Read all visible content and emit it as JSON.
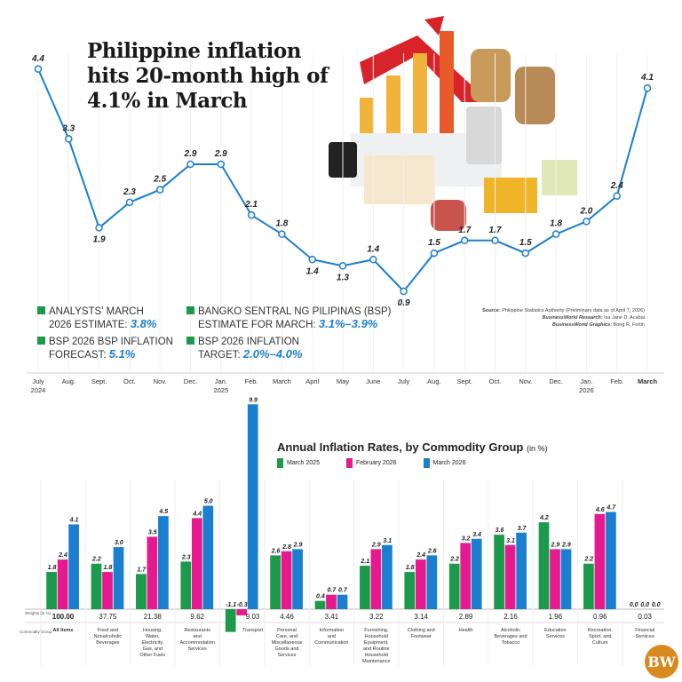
{
  "headline": "Philippine inflation hits 20-month high of 4.1% in March",
  "notes": [
    {
      "line1": "ANALYSTS' MARCH",
      "line2": "2026 ESTIMATE: ",
      "value": "3.8%"
    },
    {
      "line1": "BSP 2026 BSP INFLATION",
      "line2": "FORECAST: ",
      "value": "5.1%"
    },
    {
      "line1": "BANGKO SENTRAL NG PILIPINAS (BSP)",
      "line2": "ESTIMATE FOR MARCH: ",
      "value": "3.1%–3.9%"
    },
    {
      "line1": "BSP 2026 INFLATION",
      "line2": "TARGET: ",
      "value": "2.0%–4.0%"
    }
  ],
  "source": {
    "source_label": "Source:",
    "source_text": "Philippine Statistics Authority (Preliminary data as of April 7, 2026)",
    "research_label": "BusinessWorld Research:",
    "research_text": "Isa Jane D. Acabal",
    "graphics_label": "BusinessWorld Graphics:",
    "graphics_text": "Bong R. Fortin"
  },
  "logo": "BW",
  "colors": {
    "line": "#1a7fcf",
    "march2025": "#1a9a4a",
    "feb2026": "#e6198f",
    "march2026": "#1a7fcf",
    "note_square": "#1a9a4a",
    "logo": "#d88a1e"
  },
  "chart_data": [
    {
      "type": "line",
      "title": "",
      "x": [
        "July 2024",
        "Aug.",
        "Sept.",
        "Oct.",
        "Nov.",
        "Dec.",
        "Jan. 2025",
        "Feb.",
        "March",
        "April",
        "May",
        "June",
        "July",
        "Aug.",
        "Sept.",
        "Oct.",
        "Nov.",
        "Dec.",
        "Jan. 2026",
        "Feb.",
        "March"
      ],
      "x_tick_lines": [
        [
          "July",
          "2024"
        ],
        [
          "Aug."
        ],
        [
          "Sept."
        ],
        [
          "Oct."
        ],
        [
          "Nov."
        ],
        [
          "Dec."
        ],
        [
          "Jan.",
          "2025"
        ],
        [
          "Feb."
        ],
        [
          "March"
        ],
        [
          "April"
        ],
        [
          "May"
        ],
        [
          "June"
        ],
        [
          "July"
        ],
        [
          "Aug."
        ],
        [
          "Sept."
        ],
        [
          "Oct."
        ],
        [
          "Nov."
        ],
        [
          "Dec."
        ],
        [
          "Jan.",
          "2026"
        ],
        [
          "Feb."
        ],
        [
          "March"
        ]
      ],
      "y": [
        4.4,
        3.3,
        1.9,
        2.3,
        2.5,
        2.9,
        2.9,
        2.1,
        1.8,
        1.4,
        1.3,
        1.4,
        0.9,
        1.5,
        1.7,
        1.7,
        1.5,
        1.8,
        2.0,
        2.4,
        4.1
      ],
      "data_labels": [
        "4.4",
        "3.3",
        "1.9",
        "2.3",
        "2.5",
        "2.9",
        "2.9",
        "2.1",
        "1.8",
        "1.4",
        "1.3",
        "1.4",
        "0.9",
        "1.5",
        "1.7",
        "1.7",
        "1.5",
        "1.8",
        "2.0",
        "2.4",
        "4.1"
      ],
      "grid": true
    },
    {
      "type": "bar",
      "title": "Annual Inflation Rates, by Commodity Group",
      "unit": "(in %)",
      "weights_label": "Weights (in %)",
      "group_label": "Commodity Group",
      "categories": [
        "All Items",
        "Food and Nonalcoholic Beverages",
        "Housing, Water, Electricity, Gas, and Other Fuels",
        "Restaurants and Accommodation Services",
        "Transport",
        "Personal Care, and Miscellaneous Goods and Services",
        "Information and Communication",
        "Furnishing, Household Equipment, and Routine Household Maintenance",
        "Clothing and Footwear",
        "Health",
        "Alcoholic Beverages and Tobacco",
        "Education Services",
        "Recreation, Sport, and Culture",
        "Financial Services"
      ],
      "weights": [
        "100.00",
        "37.75",
        "21.38",
        "9.62",
        "9.03",
        "4.46",
        "3.41",
        "3.22",
        "3.14",
        "2.89",
        "2.16",
        "1.96",
        "0.96",
        "0.03"
      ],
      "series": [
        {
          "name": "March 2025",
          "values": [
            1.8,
            2.2,
            1.7,
            2.3,
            -1.1,
            2.6,
            0.4,
            2.1,
            1.8,
            2.2,
            3.6,
            4.2,
            2.2,
            0.0
          ]
        },
        {
          "name": "February 2026",
          "values": [
            2.4,
            1.8,
            3.5,
            4.4,
            -0.3,
            2.8,
            0.7,
            2.9,
            2.4,
            3.2,
            3.1,
            2.9,
            4.6,
            0.0
          ]
        },
        {
          "name": "March 2026",
          "values": [
            4.1,
            3.0,
            4.5,
            5.0,
            9.9,
            2.9,
            0.7,
            3.1,
            2.6,
            3.4,
            3.7,
            2.9,
            4.7,
            0.0
          ]
        }
      ],
      "legend_position": "top",
      "grid": false
    }
  ]
}
